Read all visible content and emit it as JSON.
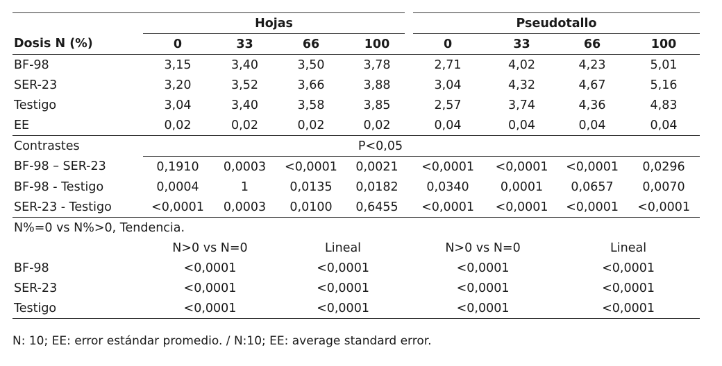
{
  "table": {
    "col_header_label": "Dosis N (%)",
    "group_hojas": "Hojas",
    "group_pseudotallo": "Pseudotallo",
    "doses": [
      "0",
      "33",
      "66",
      "100",
      "0",
      "33",
      "66",
      "100"
    ],
    "means": [
      {
        "label": "BF-98",
        "values": [
          "3,15",
          "3,40",
          "3,50",
          "3,78",
          "2,71",
          "4,02",
          "4,23",
          "5,01"
        ]
      },
      {
        "label": "SER-23",
        "values": [
          "3,20",
          "3,52",
          "3,66",
          "3,88",
          "3,04",
          "4,32",
          "4,67",
          "5,16"
        ]
      },
      {
        "label": "Testigo",
        "values": [
          "3,04",
          "3,40",
          "3,58",
          "3,85",
          "2,57",
          "3,74",
          "4,36",
          "4,83"
        ]
      },
      {
        "label": "EE",
        "values": [
          "0,02",
          "0,02",
          "0,02",
          "0,02",
          "0,04",
          "0,04",
          "0,04",
          "0,04"
        ]
      }
    ],
    "contrasts_label": "Contrastes",
    "p_label": "P<0,05",
    "contrasts": [
      {
        "label": "BF-98 – SER-23",
        "values": [
          "0,1910",
          "0,0003",
          "<0,0001",
          "0,0021",
          "<0,0001",
          "<0,0001",
          "<0,0001",
          "0,0296"
        ]
      },
      {
        "label": "BF-98 - Testigo",
        "values": [
          "0,0004",
          "1",
          "0,0135",
          "0,0182",
          "0,0340",
          "0,0001",
          "0,0657",
          "0,0070"
        ]
      },
      {
        "label": "SER-23 - Testigo",
        "values": [
          "<0,0001",
          "0,0003",
          "0,0100",
          "0,6455",
          "<0,0001",
          "<0,0001",
          "<0,0001",
          "<0,0001"
        ]
      }
    ],
    "trend_title": "N%=0 vs N%>0, Tendencia.",
    "trend_headers": [
      "N>0 vs N=0",
      "Lineal",
      "N>0 vs N=0",
      "Lineal"
    ],
    "trend": [
      {
        "label": "BF-98",
        "values": [
          "<0,0001",
          "<0,0001",
          "<0,0001",
          "<0,0001"
        ]
      },
      {
        "label": "SER-23",
        "values": [
          "<0,0001",
          "<0,0001",
          "<0,0001",
          "<0,0001"
        ]
      },
      {
        "label": "Testigo",
        "values": [
          "<0,0001",
          "<0,0001",
          "<0,0001",
          "<0,0001"
        ]
      }
    ]
  },
  "footnote": "N: 10; EE: error estándar promedio. / N:10; EE: average standard error."
}
